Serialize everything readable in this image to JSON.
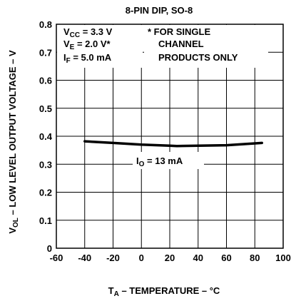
{
  "chart_data": {
    "type": "line",
    "title": "8-PIN DIP, SO-8",
    "xlabel": {
      "prefix": "T",
      "sub": "A",
      "suffix": " – TEMPERATURE – °C"
    },
    "ylabel": {
      "prefix": "V",
      "sub": "OL",
      "suffix": " – LOW LEVEL OUTPUT VOLTAGE – V"
    },
    "xlim": [
      -60,
      100
    ],
    "ylim": [
      0,
      0.8
    ],
    "x_ticks": [
      -60,
      -40,
      -20,
      0,
      20,
      40,
      60,
      80,
      100
    ],
    "x_tick_labels": [
      "-60",
      "-40",
      "-20",
      "0",
      "20",
      "40",
      "60",
      "80",
      "100"
    ],
    "y_ticks": [
      0,
      0.1,
      0.2,
      0.3,
      0.4,
      0.5,
      0.6,
      0.7,
      0.8
    ],
    "y_tick_labels": [
      "0",
      "0.1",
      "0.2",
      "0.3",
      "0.4",
      "0.5",
      "0.6",
      "0.7",
      "0.8"
    ],
    "grid": true,
    "series": [
      {
        "name": "IO = 13 mA",
        "label": {
          "prefix": "I",
          "sub": "O",
          "suffix": " = 13 mA"
        },
        "color": "#000000",
        "x": [
          -40,
          -20,
          0,
          20,
          25,
          40,
          60,
          85
        ],
        "y": [
          0.382,
          0.376,
          0.37,
          0.366,
          0.365,
          0.366,
          0.368,
          0.376
        ]
      }
    ],
    "conditions": [
      {
        "prefix": "V",
        "sub": "CC",
        "suffix": " = 3.3 V"
      },
      {
        "prefix": "V",
        "sub": "E",
        "suffix": " = 2.0 V*"
      },
      {
        "prefix": "I",
        "sub": "F",
        "suffix": " = 5.0 mA"
      }
    ],
    "footnote": [
      "* FOR SINGLE",
      "CHANNEL",
      "PRODUCTS ONLY"
    ]
  }
}
